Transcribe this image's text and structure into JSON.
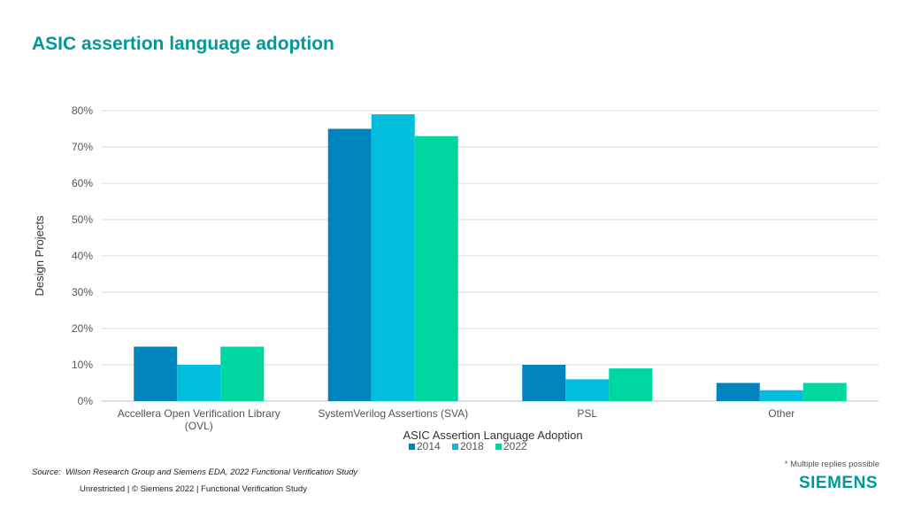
{
  "title": "ASIC assertion language adoption",
  "source_label": "Source:",
  "source": "Wilson Research Group and Siemens EDA, 2022 Functional Verification Study",
  "footer": "Unrestricted | © Siemens 2022 | Functional Verification Study",
  "note": "* Multiple replies possible",
  "logo": "SIEMENS",
  "chart_data": {
    "type": "bar",
    "xlabel": "ASIC Assertion Language Adoption",
    "ylabel": "Design Projects",
    "ylim": [
      0,
      80
    ],
    "yticks": [
      "0%",
      "10%",
      "20%",
      "30%",
      "40%",
      "50%",
      "60%",
      "70%",
      "80%"
    ],
    "grid": true,
    "legend_position": "bottom",
    "categories": [
      [
        "Accellera Open Verification Library",
        "(OVL)"
      ],
      [
        "SystemVerilog Assertions (SVA)"
      ],
      [
        "PSL"
      ],
      [
        "Other"
      ]
    ],
    "series": [
      {
        "name": "2014",
        "color": "#0084BD",
        "values": [
          15,
          75,
          10,
          5
        ]
      },
      {
        "name": "2018",
        "color": "#00BEDC",
        "values": [
          10,
          79,
          6,
          3
        ]
      },
      {
        "name": "2022",
        "color": "#00D7A0",
        "values": [
          15,
          73,
          9,
          5
        ]
      }
    ]
  }
}
